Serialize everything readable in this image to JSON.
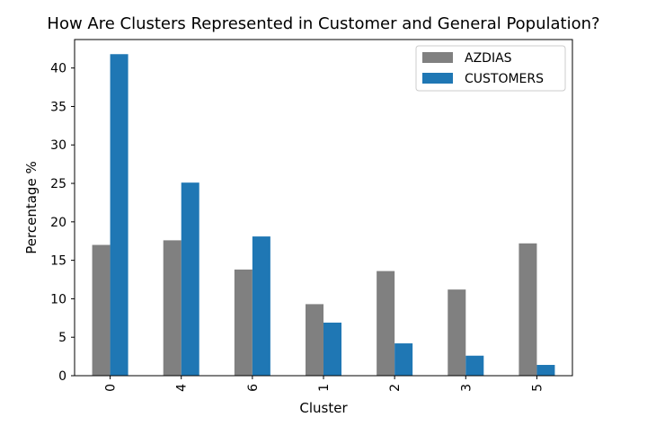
{
  "chart_data": {
    "type": "bar",
    "title": "How Are Clusters Represented in Customer and General Population?",
    "xlabel": "Cluster",
    "ylabel": "Percentage %",
    "categories": [
      "0",
      "4",
      "6",
      "1",
      "2",
      "3",
      "5"
    ],
    "series": [
      {
        "name": "AZDIAS",
        "color": "#808080",
        "values": [
          17.0,
          17.6,
          13.8,
          9.3,
          13.6,
          11.2,
          17.2
        ]
      },
      {
        "name": "CUSTOMERS",
        "color": "#1f77b4",
        "values": [
          41.8,
          25.1,
          18.1,
          6.9,
          4.2,
          2.6,
          1.4
        ]
      }
    ],
    "ylim": [
      0,
      43.7
    ],
    "yticks": [
      0,
      5,
      10,
      15,
      20,
      25,
      30,
      35,
      40
    ],
    "legend": "top-right",
    "grid": false
  }
}
